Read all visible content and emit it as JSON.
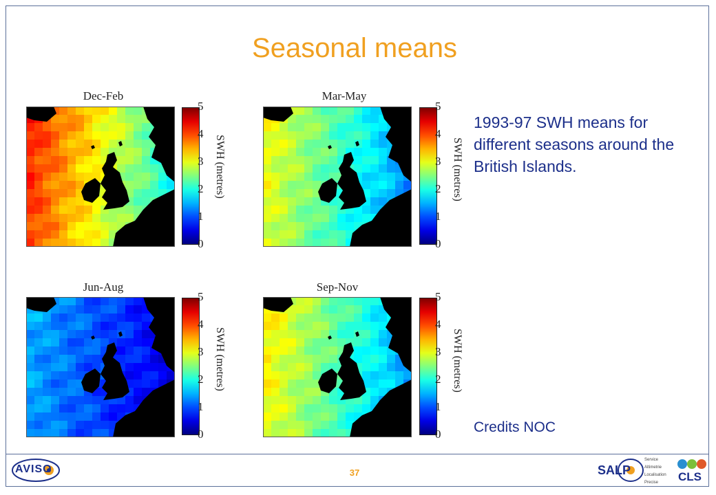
{
  "slide": {
    "title": "Seasonal means",
    "description": "1993-97 SWH means for different seasons around the British Islands.",
    "credits": "Credits NOC",
    "page_number": "37"
  },
  "panels": [
    {
      "title": "Dec-Feb",
      "colorbar_label": "SWH (metres)",
      "ticks": [
        "5",
        "4",
        "3",
        "2",
        "1",
        "0"
      ],
      "mean_level": 4.2
    },
    {
      "title": "Mar-May",
      "colorbar_label": "SWH (metres)",
      "ticks": [
        "5",
        "4",
        "3",
        "2",
        "1",
        "0"
      ],
      "mean_level": 3.2
    },
    {
      "title": "Jun-Aug",
      "colorbar_label": "SWH (metres)",
      "ticks": [
        "5",
        "4",
        "3",
        "2",
        "1",
        "0"
      ],
      "mean_level": 1.8
    },
    {
      "title": "Sep-Nov",
      "colorbar_label": "SWH (metres)",
      "ticks": [
        "5",
        "4",
        "3",
        "2",
        "1",
        "0"
      ],
      "mean_level": 3.3
    }
  ],
  "logos": {
    "aviso": "AVISO",
    "salp": "SALP",
    "salp_caption": [
      "Service",
      "Altimetrie",
      "Localisation",
      "Precise"
    ],
    "cls": "CLS"
  },
  "colors": {
    "title": "#f0a020",
    "text": "#1c2f8a",
    "land": "#000000"
  }
}
